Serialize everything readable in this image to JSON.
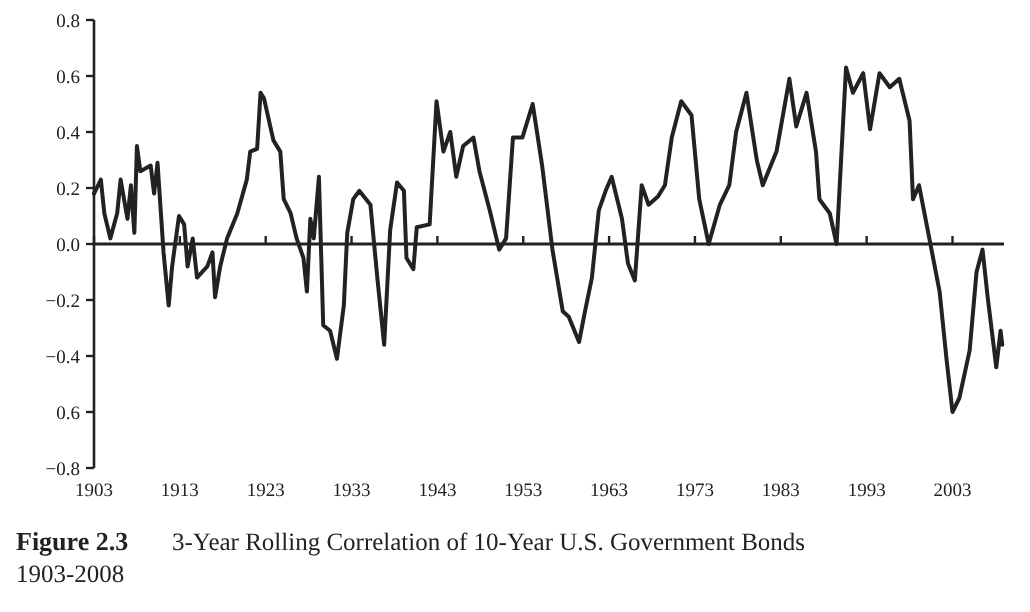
{
  "chart_data": {
    "type": "line",
    "title": "Figure 2.3",
    "subtitle": "3-Year Rolling Correlation of 10-Year U.S. Government Bonds 1903-2008",
    "xlim": [
      1903,
      2009
    ],
    "ylim": [
      -0.8,
      0.8
    ],
    "xticks": [
      1903,
      1913,
      1923,
      1933,
      1943,
      1953,
      1963,
      1973,
      1983,
      1993,
      2003
    ],
    "yticks": [
      {
        "value": -0.8,
        "label": "−0.8"
      },
      {
        "value": -0.6,
        "label": "0.6"
      },
      {
        "value": -0.4,
        "label": "−0.4"
      },
      {
        "value": -0.2,
        "label": "−0.2"
      },
      {
        "value": 0,
        "label": "0.0"
      },
      {
        "value": 0.2,
        "label": "0.2"
      },
      {
        "value": 0.4,
        "label": "0.4"
      },
      {
        "value": 0.6,
        "label": "0.6"
      },
      {
        "value": 0.8,
        "label": "0.8"
      }
    ],
    "grid": false,
    "ref_lines": [
      {
        "axis": "y",
        "value": 0
      }
    ],
    "marker": "none",
    "line_style": "solid",
    "series": [
      {
        "color": "#222222",
        "x": [
          1903,
          1903.8,
          1904.2,
          1904.9,
          1905.7,
          1906.1,
          1906.9,
          1907.3,
          1907.7,
          1908,
          1908.4,
          1909.6,
          1910,
          1910.4,
          1911.1,
          1911.7,
          1912.1,
          1912.9,
          1913.5,
          1913.9,
          1914.5,
          1915,
          1916.2,
          1916.8,
          1917.1,
          1917.7,
          1918.5,
          1919.7,
          1920.8,
          1921.2,
          1922,
          1922.4,
          1922.8,
          1923.9,
          1924.7,
          1925.1,
          1925.9,
          1926.6,
          1927.4,
          1927.8,
          1928.2,
          1928.6,
          1929.2,
          1929.7,
          1930.5,
          1931.3,
          1932.1,
          1932.5,
          1933.2,
          1933.9,
          1935.2,
          1936,
          1936.8,
          1937.5,
          1938.3,
          1939.1,
          1939.4,
          1940.2,
          1940.6,
          1942.1,
          1942.9,
          1943.7,
          1944.5,
          1945.2,
          1946,
          1947.2,
          1947.9,
          1949.1,
          1950.2,
          1951,
          1951.8,
          1952.9,
          1954.1,
          1955.2,
          1956.4,
          1957.6,
          1958.3,
          1959.5,
          1960.2,
          1961,
          1961.8,
          1962.6,
          1963.3,
          1964.5,
          1965.2,
          1966,
          1966.8,
          1967.6,
          1968.7,
          1969.5,
          1970.3,
          1971.4,
          1972.6,
          1973.5,
          1974.6,
          1975.9,
          1977,
          1977.8,
          1979,
          1980.2,
          1980.9,
          1982.5,
          1984,
          1984.8,
          1986,
          1987.1,
          1987.5,
          1988.7,
          1989.5,
          1990.6,
          1991.4,
          1992.6,
          1993.4,
          1994.5,
          1995.7,
          1996.8,
          1998,
          1998.4,
          1999.1,
          2000.3,
          2001.5,
          2002.3,
          2003,
          2003.8,
          2005,
          2005.8,
          2006.5,
          2007.1,
          2008.1,
          2008.6,
          2008.8
        ],
        "values": [
          0.18,
          0.23,
          0.11,
          0.02,
          0.11,
          0.23,
          0.09,
          0.21,
          0.04,
          0.35,
          0.26,
          0.28,
          0.18,
          0.29,
          -0.03,
          -0.22,
          -0.08,
          0.1,
          0.07,
          -0.08,
          0.02,
          -0.12,
          -0.08,
          -0.03,
          -0.19,
          -0.08,
          0.02,
          0.11,
          0.23,
          0.33,
          0.34,
          0.54,
          0.52,
          0.37,
          0.33,
          0.16,
          0.11,
          0.02,
          -0.05,
          -0.17,
          0.09,
          0.02,
          0.24,
          -0.29,
          -0.31,
          -0.41,
          -0.22,
          0.04,
          0.16,
          0.19,
          0.14,
          -0.12,
          -0.36,
          0.05,
          0.22,
          0.19,
          -0.05,
          -0.09,
          0.06,
          0.07,
          0.51,
          0.33,
          0.4,
          0.24,
          0.35,
          0.38,
          0.26,
          0.12,
          -0.02,
          0.02,
          0.38,
          0.38,
          0.5,
          0.28,
          -0.02,
          -0.24,
          -0.26,
          -0.35,
          -0.24,
          -0.12,
          0.12,
          0.19,
          0.24,
          0.09,
          -0.07,
          -0.13,
          0.21,
          0.14,
          0.17,
          0.21,
          0.38,
          0.51,
          0.46,
          0.16,
          0,
          0.14,
          0.21,
          0.4,
          0.54,
          0.3,
          0.21,
          0.33,
          0.59,
          0.42,
          0.54,
          0.33,
          0.16,
          0.11,
          0,
          0.63,
          0.54,
          0.61,
          0.41,
          0.61,
          0.56,
          0.59,
          0.44,
          0.16,
          0.21,
          0.02,
          -0.17,
          -0.41,
          -0.6,
          -0.55,
          -0.38,
          -0.1,
          -0.02,
          -0.19,
          -0.44,
          -0.31,
          -0.36
        ]
      }
    ]
  }
}
